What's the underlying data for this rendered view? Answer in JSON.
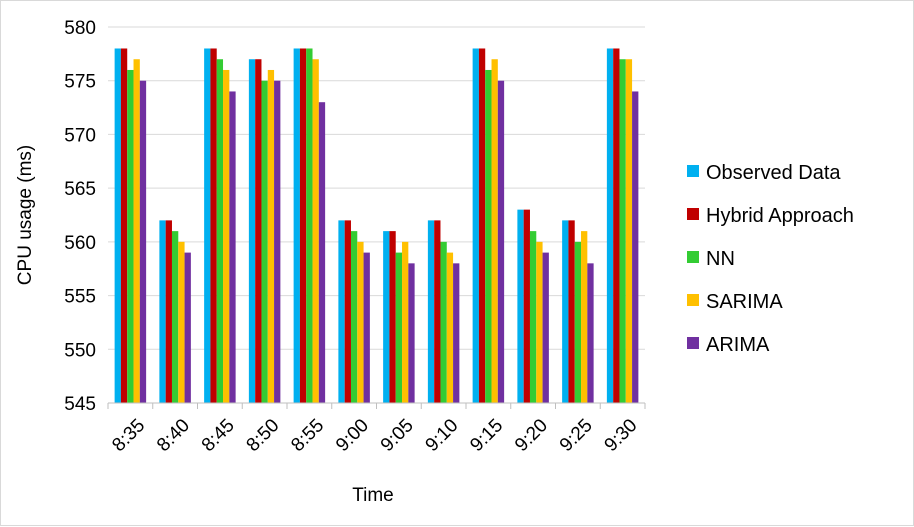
{
  "chart_data": {
    "type": "bar",
    "title": "",
    "xlabel": "Time",
    "ylabel": "CPU usage (ms)",
    "ylim": [
      545,
      580
    ],
    "yticks": [
      545,
      550,
      555,
      560,
      565,
      570,
      575,
      580
    ],
    "grid": "horizontal",
    "legend_position": "right",
    "categories": [
      "8:35",
      "8:40",
      "8:45",
      "8:50",
      "8:55",
      "9:00",
      "9:05",
      "9:10",
      "9:15",
      "9:20",
      "9:25",
      "9:30"
    ],
    "series": [
      {
        "name": "Observed Data",
        "color": "#00B0F0",
        "values": [
          578,
          562,
          578,
          577,
          578,
          562,
          561,
          562,
          578,
          563,
          562,
          578
        ]
      },
      {
        "name": "Hybrid Approach",
        "color": "#C00000",
        "values": [
          578,
          562,
          578,
          577,
          578,
          562,
          561,
          562,
          578,
          563,
          562,
          578
        ]
      },
      {
        "name": "NN",
        "color": "#33CC33",
        "values": [
          576,
          561,
          577,
          575,
          578,
          561,
          559,
          560,
          576,
          561,
          560,
          577
        ]
      },
      {
        "name": "SARIMA",
        "color": "#FFC000",
        "values": [
          577,
          560,
          576,
          576,
          577,
          560,
          560,
          559,
          577,
          560,
          561,
          577
        ]
      },
      {
        "name": "ARIMA",
        "color": "#7030A0",
        "values": [
          575,
          559,
          574,
          575,
          573,
          559,
          558,
          558,
          575,
          559,
          558,
          574
        ]
      }
    ]
  }
}
